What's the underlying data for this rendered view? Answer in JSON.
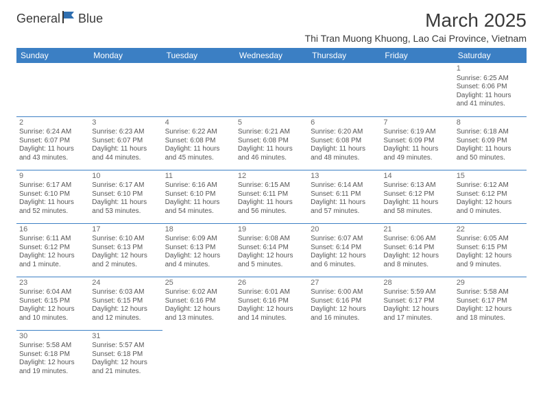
{
  "logo": {
    "text1": "General",
    "text2": "Blue"
  },
  "title": "March 2025",
  "location": "Thi Tran Muong Khuong, Lao Cai Province, Vietnam",
  "colors": {
    "header_bg": "#3b7fc4",
    "header_text": "#ffffff",
    "border": "#3b7fc4",
    "body_text": "#555555",
    "daynum_text": "#6a6a6a",
    "title_text": "#3a3a3a",
    "logo_accent": "#2f6fb0"
  },
  "day_headers": [
    "Sunday",
    "Monday",
    "Tuesday",
    "Wednesday",
    "Thursday",
    "Friday",
    "Saturday"
  ],
  "weeks": [
    [
      null,
      null,
      null,
      null,
      null,
      null,
      {
        "n": "1",
        "sr": "6:25 AM",
        "ss": "6:06 PM",
        "dl": "11 hours and 41 minutes."
      }
    ],
    [
      {
        "n": "2",
        "sr": "6:24 AM",
        "ss": "6:07 PM",
        "dl": "11 hours and 43 minutes."
      },
      {
        "n": "3",
        "sr": "6:23 AM",
        "ss": "6:07 PM",
        "dl": "11 hours and 44 minutes."
      },
      {
        "n": "4",
        "sr": "6:22 AM",
        "ss": "6:08 PM",
        "dl": "11 hours and 45 minutes."
      },
      {
        "n": "5",
        "sr": "6:21 AM",
        "ss": "6:08 PM",
        "dl": "11 hours and 46 minutes."
      },
      {
        "n": "6",
        "sr": "6:20 AM",
        "ss": "6:08 PM",
        "dl": "11 hours and 48 minutes."
      },
      {
        "n": "7",
        "sr": "6:19 AM",
        "ss": "6:09 PM",
        "dl": "11 hours and 49 minutes."
      },
      {
        "n": "8",
        "sr": "6:18 AM",
        "ss": "6:09 PM",
        "dl": "11 hours and 50 minutes."
      }
    ],
    [
      {
        "n": "9",
        "sr": "6:17 AM",
        "ss": "6:10 PM",
        "dl": "11 hours and 52 minutes."
      },
      {
        "n": "10",
        "sr": "6:17 AM",
        "ss": "6:10 PM",
        "dl": "11 hours and 53 minutes."
      },
      {
        "n": "11",
        "sr": "6:16 AM",
        "ss": "6:10 PM",
        "dl": "11 hours and 54 minutes."
      },
      {
        "n": "12",
        "sr": "6:15 AM",
        "ss": "6:11 PM",
        "dl": "11 hours and 56 minutes."
      },
      {
        "n": "13",
        "sr": "6:14 AM",
        "ss": "6:11 PM",
        "dl": "11 hours and 57 minutes."
      },
      {
        "n": "14",
        "sr": "6:13 AM",
        "ss": "6:12 PM",
        "dl": "11 hours and 58 minutes."
      },
      {
        "n": "15",
        "sr": "6:12 AM",
        "ss": "6:12 PM",
        "dl": "12 hours and 0 minutes."
      }
    ],
    [
      {
        "n": "16",
        "sr": "6:11 AM",
        "ss": "6:12 PM",
        "dl": "12 hours and 1 minute."
      },
      {
        "n": "17",
        "sr": "6:10 AM",
        "ss": "6:13 PM",
        "dl": "12 hours and 2 minutes."
      },
      {
        "n": "18",
        "sr": "6:09 AM",
        "ss": "6:13 PM",
        "dl": "12 hours and 4 minutes."
      },
      {
        "n": "19",
        "sr": "6:08 AM",
        "ss": "6:14 PM",
        "dl": "12 hours and 5 minutes."
      },
      {
        "n": "20",
        "sr": "6:07 AM",
        "ss": "6:14 PM",
        "dl": "12 hours and 6 minutes."
      },
      {
        "n": "21",
        "sr": "6:06 AM",
        "ss": "6:14 PM",
        "dl": "12 hours and 8 minutes."
      },
      {
        "n": "22",
        "sr": "6:05 AM",
        "ss": "6:15 PM",
        "dl": "12 hours and 9 minutes."
      }
    ],
    [
      {
        "n": "23",
        "sr": "6:04 AM",
        "ss": "6:15 PM",
        "dl": "12 hours and 10 minutes."
      },
      {
        "n": "24",
        "sr": "6:03 AM",
        "ss": "6:15 PM",
        "dl": "12 hours and 12 minutes."
      },
      {
        "n": "25",
        "sr": "6:02 AM",
        "ss": "6:16 PM",
        "dl": "12 hours and 13 minutes."
      },
      {
        "n": "26",
        "sr": "6:01 AM",
        "ss": "6:16 PM",
        "dl": "12 hours and 14 minutes."
      },
      {
        "n": "27",
        "sr": "6:00 AM",
        "ss": "6:16 PM",
        "dl": "12 hours and 16 minutes."
      },
      {
        "n": "28",
        "sr": "5:59 AM",
        "ss": "6:17 PM",
        "dl": "12 hours and 17 minutes."
      },
      {
        "n": "29",
        "sr": "5:58 AM",
        "ss": "6:17 PM",
        "dl": "12 hours and 18 minutes."
      }
    ],
    [
      {
        "n": "30",
        "sr": "5:58 AM",
        "ss": "6:18 PM",
        "dl": "12 hours and 19 minutes."
      },
      {
        "n": "31",
        "sr": "5:57 AM",
        "ss": "6:18 PM",
        "dl": "12 hours and 21 minutes."
      },
      null,
      null,
      null,
      null,
      null
    ]
  ],
  "labels": {
    "sunrise": "Sunrise:",
    "sunset": "Sunset:",
    "daylight": "Daylight:"
  }
}
